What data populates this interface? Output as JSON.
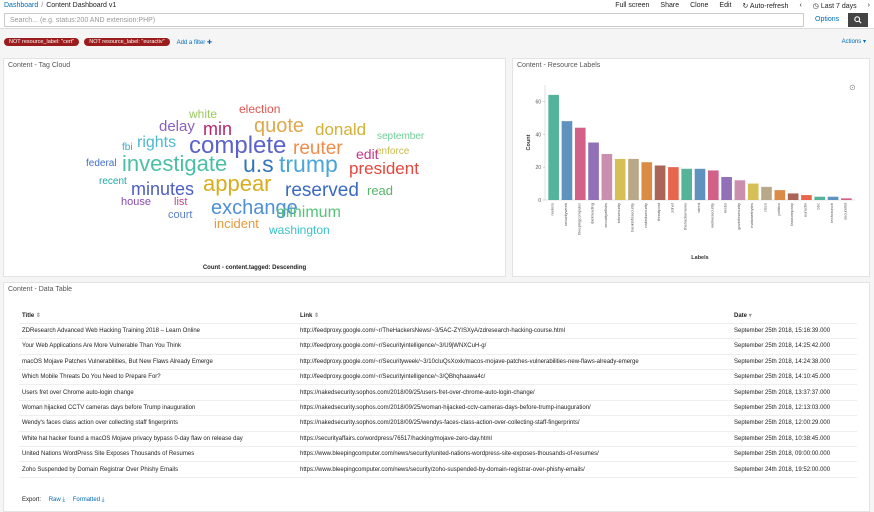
{
  "breadcrumb": {
    "root": "Dashboard",
    "sep": "/",
    "current": "Content Dashboard v1"
  },
  "topnav": {
    "fullscreen": "Full screen",
    "share": "Share",
    "clone": "Clone",
    "edit": "Edit",
    "autorefresh": "Auto-refresh",
    "timerange": "Last 7 days"
  },
  "search": {
    "placeholder": "Search... (e.g. status:200 AND extension:PHP)",
    "options": "Options"
  },
  "filters": {
    "pills": [
      "NOT resource_label: \"cert\"",
      "NOT resource_label: \"euractiv\""
    ],
    "add": "Add a filter",
    "actions": "Actions"
  },
  "tagcloud": {
    "title": "Content - Tag Cloud",
    "caption": "Count - content.tagged: Descending",
    "words": [
      {
        "text": "white",
        "color": "#9aca5c"
      },
      {
        "text": "election",
        "color": "#e5534e"
      },
      {
        "text": "delay",
        "color": "#8b5fbf"
      },
      {
        "text": "min",
        "color": "#b0286f"
      },
      {
        "text": "quote",
        "color": "#e0a84c"
      },
      {
        "text": "donald",
        "color": "#d4b03a"
      },
      {
        "text": "september",
        "color": "#6fcf97"
      },
      {
        "text": "fbi",
        "color": "#3fa7c6"
      },
      {
        "text": "rights",
        "color": "#4db8d2"
      },
      {
        "text": "complete",
        "color": "#5a63c9"
      },
      {
        "text": "reuter",
        "color": "#f08c4a"
      },
      {
        "text": "enforce",
        "color": "#c9b94e"
      },
      {
        "text": "edit",
        "color": "#c5358b"
      },
      {
        "text": "federal",
        "color": "#3f6ec8"
      },
      {
        "text": "investigate",
        "color": "#4bbfa5"
      },
      {
        "text": "u.s",
        "color": "#3476b9"
      },
      {
        "text": "trump",
        "color": "#4aa6d8"
      },
      {
        "text": "president",
        "color": "#e6463d"
      },
      {
        "text": "recent",
        "color": "#1fa7a7"
      },
      {
        "text": "minutes",
        "color": "#4d5ebf"
      },
      {
        "text": "appear",
        "color": "#d8ad1c"
      },
      {
        "text": "reserved",
        "color": "#3b6ac0"
      },
      {
        "text": "read",
        "color": "#58b56b"
      },
      {
        "text": "house",
        "color": "#8a4bb3"
      },
      {
        "text": "list",
        "color": "#c2448b"
      },
      {
        "text": "exchange",
        "color": "#4f8fd4"
      },
      {
        "text": "minimum",
        "color": "#56c27a"
      },
      {
        "text": "court",
        "color": "#5b7fc5"
      },
      {
        "text": "incident",
        "color": "#e59a3c"
      },
      {
        "text": "washington",
        "color": "#3ac0c9"
      }
    ]
  },
  "barchart": {
    "title": "Content - Resource Labels",
    "chart_data": {
      "type": "bar",
      "ylabel": "Count",
      "xlabel": "Labels",
      "yticks": [
        0,
        20,
        40,
        60
      ],
      "ylim": [
        0,
        70
      ],
      "categories": [
        "reuters",
        "securityweek",
        "bleepingcomputer",
        "darkreading",
        "securityaffairs",
        "infosecurity",
        "bankinfosecurity",
        "nakedsecurity",
        "threatpost",
        "zdnet",
        "thehackernews",
        "wired",
        "welivesecurity",
        "krebs",
        "govinfosecurity",
        "malwarebytes",
        "cisco",
        "politico",
        "fastcompany",
        "euractiv",
        "bbc",
        "techcrunch",
        "securelist"
      ],
      "values": [
        64,
        48,
        44,
        35,
        28,
        25,
        25,
        23,
        21,
        20,
        19,
        19,
        18,
        14,
        12,
        10,
        8,
        6,
        4,
        3,
        2,
        2,
        1
      ],
      "colors": [
        "#54b399",
        "#6092c0",
        "#d36086",
        "#9170b8",
        "#ca8eae",
        "#d6bf57",
        "#b9a888",
        "#da8b45",
        "#aa6556",
        "#e7664c",
        "#54b399",
        "#6092c0",
        "#d36086",
        "#9170b8",
        "#ca8eae",
        "#d6bf57",
        "#b9a888",
        "#da8b45",
        "#aa6556",
        "#e7664c",
        "#54b399",
        "#6092c0",
        "#d36086"
      ]
    }
  },
  "datatable": {
    "title": "Content - Data Table",
    "columns": [
      "Title",
      "Link",
      "Date"
    ],
    "rows": [
      [
        "ZDResearch Advanced Web Hacking Training 2018 – Learn Online",
        "http://feedproxy.google.com/~r/TheHackersNews/~3/5AC-ZYISXyA/zdresearch-hacking-course.html",
        "September 25th 2018, 15:16:39.000"
      ],
      [
        "Your Web Applications Are More Vulnerable Than You Think",
        "http://feedproxy.google.com/~r/Securityintelligence/~3/U9jWNXCuH-g/",
        "September 25th 2018, 14:25:42.000"
      ],
      [
        "macOS Mojave Patches Vulnerabilities, But New Flaws Already Emerge",
        "http://feedproxy.google.com/~r/Securityweek/~3/10cIuQsXoxk/macos-mojave-patches-vulnerabilities-new-flaws-already-emerge",
        "September 25th 2018, 14:24:38.000"
      ],
      [
        "Which Mobile Threats Do You Need to Prepare For?",
        "http://feedproxy.google.com/~r/Securityintelligence/~3/QBhqhaawa4c/",
        "September 25th 2018, 14:10:45.000"
      ],
      [
        "Users fret over Chrome auto-login change",
        "https://nakedsecurity.sophos.com/2018/09/25/users-fret-over-chrome-auto-login-change/",
        "September 25th 2018, 13:37:37.000"
      ],
      [
        "Woman hijacked CCTV cameras days before Trump inauguration",
        "https://nakedsecurity.sophos.com/2018/09/25/woman-hijacked-cctv-cameras-days-before-trump-inauguration/",
        "September 25th 2018, 12:13:03.000"
      ],
      [
        "Wendy's faces class action over collecting staff fingerprints",
        "https://nakedsecurity.sophos.com/2018/09/25/wendys-faces-class-action-over-collecting-staff-fingerprints/",
        "September 25th 2018, 12:00:29.000"
      ],
      [
        "White hat hacker found a macOS Mojave privacy bypass 0-day flaw on release day",
        "https://securityaffairs.co/wordpress/76517/hacking/mojave-zero-day.html",
        "September 25th 2018, 10:38:45.000"
      ],
      [
        "United Nations WordPress Site Exposes Thousands of Resumes",
        "https://www.bleepingcomputer.com/news/security/united-nations-wordpress-site-exposes-thousands-of-resumes/",
        "September 25th 2018, 09:00:00.000"
      ],
      [
        "Zoho Suspended by Domain Registrar Over Phishy Emails",
        "https://www.bleepingcomputer.com/news/security/zoho-suspended-by-domain-registrar-over-phishy-emails/",
        "September 24th 2018, 19:52:00.000"
      ]
    ],
    "export": {
      "label": "Export:",
      "raw": "Raw",
      "formatted": "Formatted"
    }
  }
}
